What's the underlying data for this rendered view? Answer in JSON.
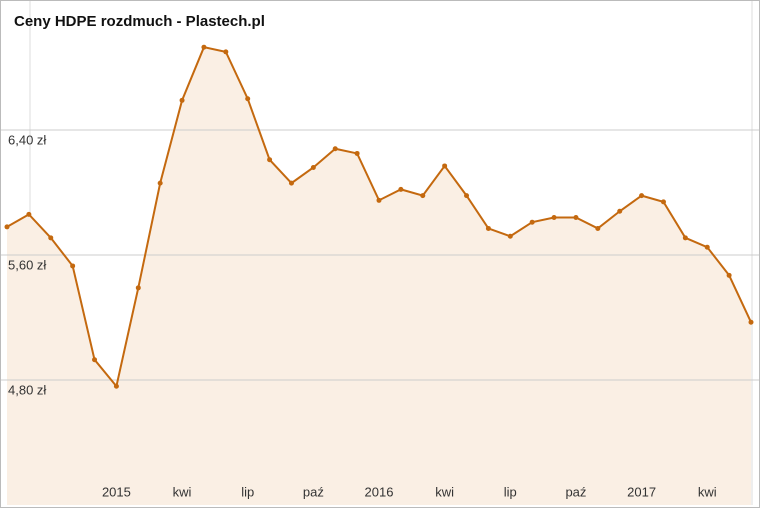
{
  "chart_data": {
    "type": "area-line",
    "title": "Ceny HDPE rozdmuch - Plastech.pl",
    "categories": [
      null,
      null,
      null,
      null,
      null,
      "2015",
      null,
      null,
      "kwi",
      null,
      null,
      "lip",
      null,
      null,
      "paź",
      null,
      null,
      "2016",
      null,
      null,
      "kwi",
      null,
      null,
      "lip",
      null,
      null,
      "paź",
      null,
      null,
      "2017",
      null,
      null,
      "kwi",
      null,
      null
    ],
    "series": [
      {
        "name": "HDPE rozdmuch",
        "color": "#c4690f",
        "values": [
          5.78,
          5.86,
          5.71,
          5.53,
          4.93,
          4.76,
          5.39,
          6.06,
          6.59,
          6.93,
          6.9,
          6.6,
          6.21,
          6.06,
          6.16,
          6.28,
          6.25,
          5.95,
          6.02,
          5.98,
          6.17,
          5.98,
          5.77,
          5.72,
          5.81,
          5.84,
          5.84,
          5.77,
          5.88,
          5.98,
          5.94,
          5.71,
          5.65,
          5.47,
          5.17
        ]
      }
    ],
    "area_color": "#faefe4",
    "ylim": [
      4.0,
      7.2
    ],
    "yticks": [
      {
        "value": 4.8,
        "label": "4,80 zł"
      },
      {
        "value": 5.6,
        "label": "5,60 zł"
      },
      {
        "value": 6.4,
        "label": "6,40 zł"
      }
    ],
    "grid": true
  }
}
